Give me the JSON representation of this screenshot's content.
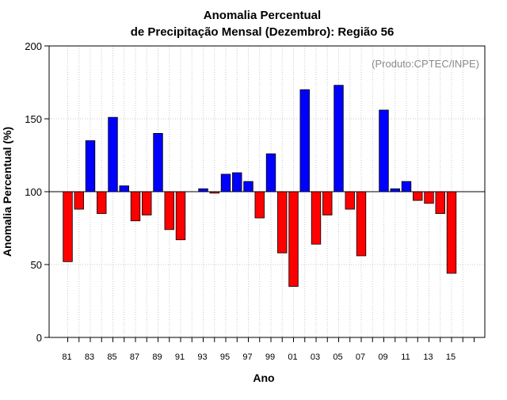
{
  "chart_data": {
    "type": "bar",
    "title_line1": "Anomalia Percentual",
    "title_line2": "de Precipitação Mensal (Dezembro): Região 56",
    "xlabel": "Ano",
    "ylabel": "Anomalia Percentual (%)",
    "annotation": "(Produto:CPTEC/INPE)",
    "baseline": 100,
    "ylim": [
      0,
      200
    ],
    "yticks": [
      0,
      50,
      100,
      150,
      200
    ],
    "xtick_labels": [
      "81",
      "83",
      "85",
      "87",
      "89",
      "91",
      "93",
      "95",
      "97",
      "99",
      "01",
      "03",
      "05",
      "07",
      "09",
      "11",
      "13",
      "15"
    ],
    "grid": true,
    "colors": {
      "above": "#0000ff",
      "below": "#ff0000",
      "grid": "#c8c8c8",
      "frame": "#000000"
    },
    "years": [
      1981,
      1982,
      1983,
      1984,
      1985,
      1986,
      1987,
      1988,
      1989,
      1990,
      1991,
      1992,
      1993,
      1994,
      1995,
      1996,
      1997,
      1998,
      1999,
      2000,
      2001,
      2002,
      2003,
      2004,
      2005,
      2006,
      2007,
      2008,
      2009,
      2010,
      2011,
      2012,
      2013,
      2014,
      2015,
      2016
    ],
    "values": [
      52,
      88,
      135,
      85,
      151,
      104,
      80,
      84,
      140,
      74,
      67,
      100,
      102,
      99,
      112,
      113,
      107,
      82,
      126,
      58,
      35,
      170,
      64,
      84,
      173,
      88,
      56,
      100,
      156,
      102,
      107,
      94,
      92,
      85,
      44,
      100
    ]
  }
}
